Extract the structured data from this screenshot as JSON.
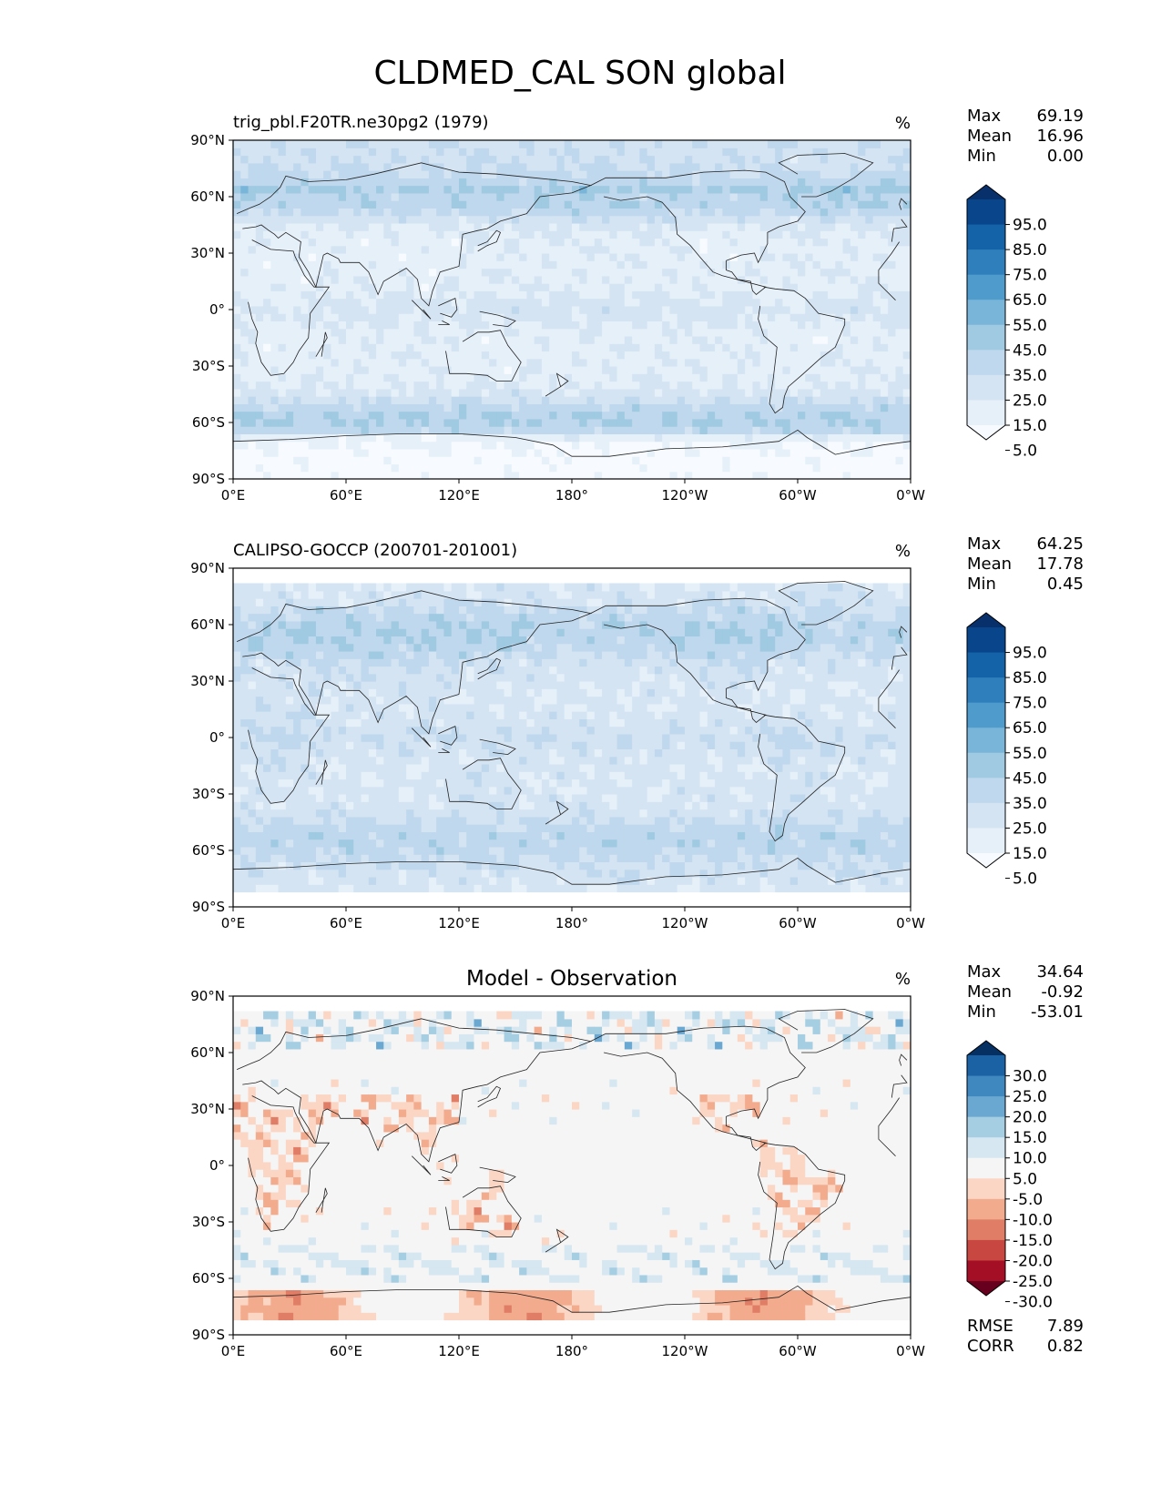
{
  "title": "CLDMED_CAL SON global",
  "lat_ticks": [
    "90°N",
    "60°N",
    "30°N",
    "0°",
    "30°S",
    "60°S",
    "90°S"
  ],
  "lon_ticks": [
    "0°E",
    "60°E",
    "120°E",
    "180°",
    "120°W",
    "60°W",
    "0°W"
  ],
  "panels": [
    {
      "subtitle_left": "trig_pbl.F20TR.ne30pg2 (1979)",
      "subtitle_center": "",
      "units": "%",
      "stats": [
        [
          "Max",
          "69.19"
        ],
        [
          "Mean",
          "16.96"
        ],
        [
          "Min",
          "0.00"
        ]
      ],
      "colorbar_ticks": [
        "95.0",
        "85.0",
        "75.0",
        "65.0",
        "55.0",
        "45.0",
        "35.0",
        "25.0",
        "15.0",
        "5.0"
      ],
      "colors": [
        "#f7fbff",
        "#e6f0f9",
        "#d4e4f3",
        "#bfd8ed",
        "#9fcae1",
        "#79b5d9",
        "#4f9bcb",
        "#2f7fbc",
        "#1462a8",
        "#08458a",
        "#08306b"
      ]
    },
    {
      "subtitle_left": "CALIPSO-GOCCP (200701-201001)",
      "subtitle_center": "",
      "units": "%",
      "stats": [
        [
          "Max",
          "64.25"
        ],
        [
          "Mean",
          "17.78"
        ],
        [
          "Min",
          "0.45"
        ]
      ],
      "colorbar_ticks": [
        "95.0",
        "85.0",
        "75.0",
        "65.0",
        "55.0",
        "45.0",
        "35.0",
        "25.0",
        "15.0",
        "5.0"
      ],
      "colors": [
        "#f7fbff",
        "#e6f0f9",
        "#d4e4f3",
        "#bfd8ed",
        "#9fcae1",
        "#79b5d9",
        "#4f9bcb",
        "#2f7fbc",
        "#1462a8",
        "#08458a",
        "#08306b"
      ]
    },
    {
      "subtitle_left": "",
      "subtitle_center": "Model - Observation",
      "units": "%",
      "stats": [
        [
          "Max",
          "34.64"
        ],
        [
          "Mean",
          "-0.92"
        ],
        [
          "Min",
          "-53.01"
        ]
      ],
      "colorbar_ticks": [
        "30.0",
        "25.0",
        "20.0",
        "15.0",
        "10.0",
        "5.0",
        "-5.0",
        "-10.0",
        "-15.0",
        "-20.0",
        "-25.0",
        "-30.0"
      ],
      "colors": [
        "#67001f",
        "#a50f26",
        "#c94741",
        "#e07d66",
        "#f3ab8e",
        "#fbd6c4",
        "#f5f5f5",
        "#d6e7f1",
        "#a6cee3",
        "#6aa8d2",
        "#3f87bf",
        "#1b62a4",
        "#053061"
      ],
      "extra_stats": [
        [
          "RMSE",
          "7.89"
        ],
        [
          "CORR",
          "0.82"
        ]
      ]
    }
  ]
}
